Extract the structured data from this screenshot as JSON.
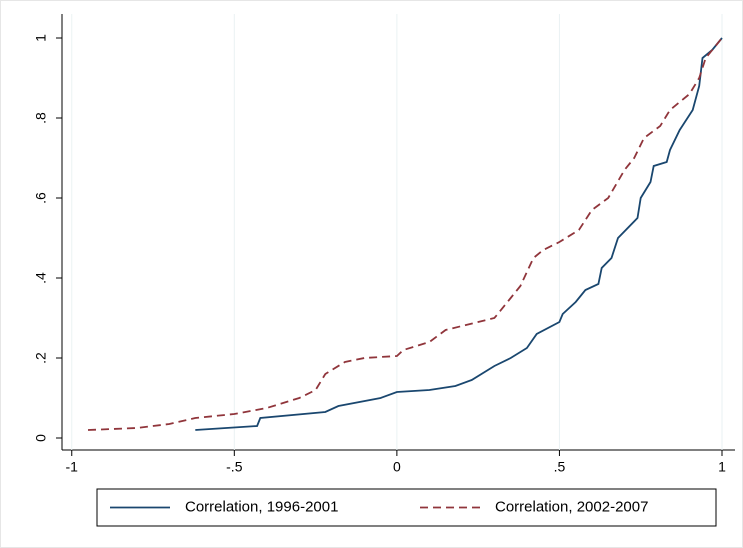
{
  "chart_data": {
    "type": "line",
    "series": [
      {
        "name": "Correlation, 1996-2001",
        "color": "#1a476f",
        "dash": "solid",
        "x": [
          -0.62,
          -0.43,
          -0.42,
          -0.22,
          -0.18,
          -0.05,
          0,
          0.1,
          0.18,
          0.23,
          0.27,
          0.3,
          0.35,
          0.4,
          0.43,
          0.5,
          0.51,
          0.55,
          0.58,
          0.62,
          0.63,
          0.66,
          0.68,
          0.74,
          0.75,
          0.78,
          0.79,
          0.83,
          0.84,
          0.87,
          0.91,
          0.93,
          0.94,
          0.97,
          1
        ],
        "values": [
          0.02,
          0.03,
          0.05,
          0.065,
          0.08,
          0.1,
          0.115,
          0.12,
          0.13,
          0.145,
          0.165,
          0.18,
          0.2,
          0.225,
          0.26,
          0.29,
          0.31,
          0.34,
          0.37,
          0.385,
          0.425,
          0.45,
          0.5,
          0.55,
          0.6,
          0.64,
          0.68,
          0.69,
          0.72,
          0.77,
          0.82,
          0.88,
          0.95,
          0.97,
          1
        ]
      },
      {
        "name": "Correlation, 2002-2007",
        "color": "#90353b",
        "dash": "dashed",
        "x": [
          -0.95,
          -0.8,
          -0.7,
          -0.62,
          -0.5,
          -0.4,
          -0.3,
          -0.25,
          -0.22,
          -0.16,
          -0.1,
          0,
          0.02,
          0.1,
          0.15,
          0.2,
          0.3,
          0.35,
          0.38,
          0.42,
          0.45,
          0.5,
          0.56,
          0.6,
          0.65,
          0.7,
          0.73,
          0.76,
          0.81,
          0.84,
          0.9,
          0.93,
          0.95,
          1
        ],
        "values": [
          0.02,
          0.025,
          0.035,
          0.05,
          0.06,
          0.075,
          0.1,
          0.12,
          0.16,
          0.19,
          0.2,
          0.205,
          0.22,
          0.24,
          0.27,
          0.28,
          0.3,
          0.35,
          0.38,
          0.45,
          0.47,
          0.49,
          0.52,
          0.57,
          0.6,
          0.67,
          0.7,
          0.75,
          0.78,
          0.82,
          0.86,
          0.9,
          0.95,
          1
        ]
      }
    ],
    "xlim": [
      -1.03,
      1.04
    ],
    "ylim": [
      -0.03,
      1.06
    ],
    "xticks": [
      -1,
      {
        "value": -0.5,
        "label": "-.5"
      },
      0,
      {
        "value": 0.5,
        "label": ".5"
      },
      1
    ],
    "yticks": [
      0,
      {
        "value": 0.2,
        "label": ".2"
      },
      {
        "value": 0.4,
        "label": ".4"
      },
      {
        "value": 0.6,
        "label": ".6"
      },
      {
        "value": 0.8,
        "label": ".8"
      },
      1
    ],
    "grid": "x",
    "legend": "bottom"
  }
}
